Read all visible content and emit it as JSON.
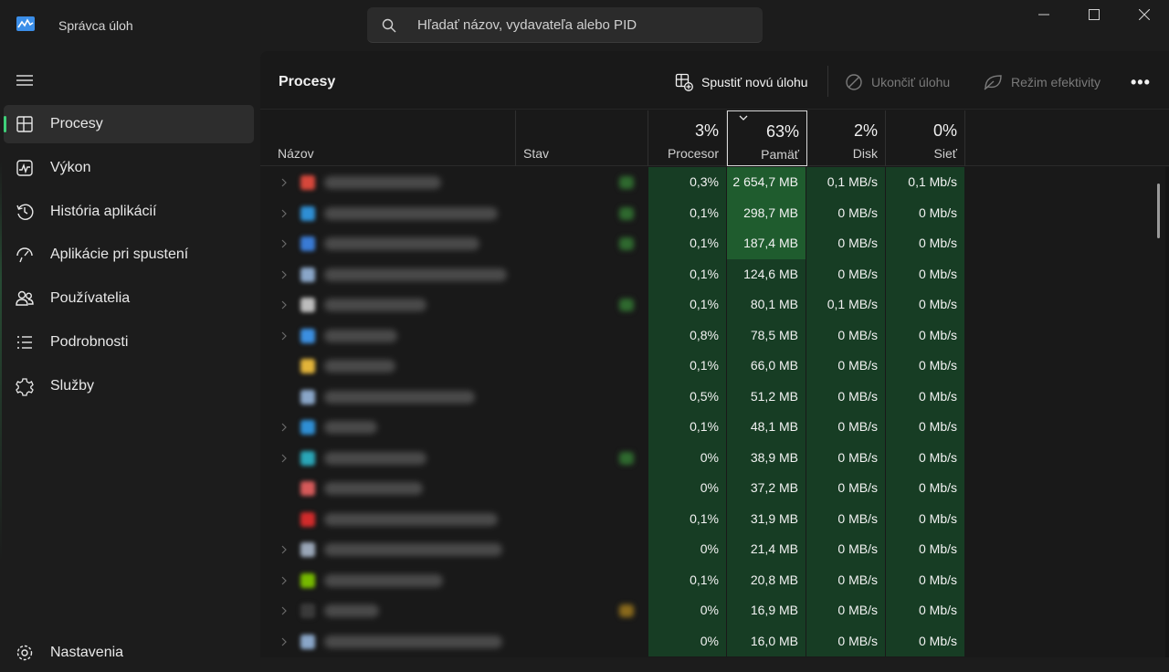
{
  "app": {
    "title": "Správca úloh"
  },
  "search": {
    "placeholder": "Hľadať názov, vydavateľa alebo PID"
  },
  "sidebar": {
    "items": [
      {
        "label": "Procesy",
        "icon": "processes-icon",
        "active": true
      },
      {
        "label": "Výkon",
        "icon": "performance-icon"
      },
      {
        "label": "História aplikácií",
        "icon": "history-icon"
      },
      {
        "label": "Aplikácie pri spustení",
        "icon": "startup-icon"
      },
      {
        "label": "Používatelia",
        "icon": "users-icon"
      },
      {
        "label": "Podrobnosti",
        "icon": "details-icon"
      },
      {
        "label": "Služby",
        "icon": "services-icon"
      }
    ],
    "settings_label": "Nastavenia"
  },
  "toolbar": {
    "title": "Procesy",
    "run_new_task": "Spustiť novú úlohu",
    "end_task": "Ukončiť úlohu",
    "efficiency_mode": "Režim efektivity",
    "more": "•••"
  },
  "columns": {
    "name": "Názov",
    "status": "Stav",
    "cpu": {
      "pct": "3%",
      "label": "Procesor"
    },
    "memory": {
      "pct": "63%",
      "label": "Pamäť",
      "sorted": true
    },
    "disk": {
      "pct": "2%",
      "label": "Disk"
    },
    "network": {
      "pct": "0%",
      "label": "Sieť"
    }
  },
  "rows": [
    {
      "cpu": "0,3%",
      "mem": "2 654,7 MB",
      "disk": "0,1 MB/s",
      "net": "0,1 Mb/s",
      "expandable": true,
      "status": true,
      "icon_color": "#d6473b",
      "name_len": 128
    },
    {
      "cpu": "0,1%",
      "mem": "298,7 MB",
      "disk": "0 MB/s",
      "net": "0 Mb/s",
      "expandable": true,
      "status": true,
      "icon_color": "#2f8fd4",
      "name_len": 190
    },
    {
      "cpu": "0,1%",
      "mem": "187,4 MB",
      "disk": "0 MB/s",
      "net": "0 Mb/s",
      "expandable": true,
      "status": true,
      "icon_color": "#3a7bd5",
      "name_len": 170
    },
    {
      "cpu": "0,1%",
      "mem": "124,6 MB",
      "disk": "0 MB/s",
      "net": "0 Mb/s",
      "expandable": true,
      "status": false,
      "icon_color": "#8aa6c8",
      "name_len": 200
    },
    {
      "cpu": "0,1%",
      "mem": "80,1 MB",
      "disk": "0,1 MB/s",
      "net": "0 Mb/s",
      "expandable": true,
      "status": true,
      "icon_color": "#bdbdbd",
      "name_len": 112
    },
    {
      "cpu": "0,8%",
      "mem": "78,5 MB",
      "disk": "0 MB/s",
      "net": "0 Mb/s",
      "expandable": true,
      "status": false,
      "icon_color": "#3c8fe0",
      "name_len": 80
    },
    {
      "cpu": "0,1%",
      "mem": "66,0 MB",
      "disk": "0 MB/s",
      "net": "0 Mb/s",
      "expandable": false,
      "status": false,
      "icon_color": "#e2b43a",
      "name_len": 78
    },
    {
      "cpu": "0,5%",
      "mem": "51,2 MB",
      "disk": "0 MB/s",
      "net": "0 Mb/s",
      "expandable": false,
      "status": false,
      "icon_color": "#8aa6c8",
      "name_len": 165
    },
    {
      "cpu": "0,1%",
      "mem": "48,1 MB",
      "disk": "0 MB/s",
      "net": "0 Mb/s",
      "expandable": true,
      "status": false,
      "icon_color": "#2f8fd4",
      "name_len": 58
    },
    {
      "cpu": "0%",
      "mem": "38,9 MB",
      "disk": "0 MB/s",
      "net": "0 Mb/s",
      "expandable": true,
      "status": true,
      "icon_color": "#2aa6b8",
      "name_len": 112
    },
    {
      "cpu": "0%",
      "mem": "37,2 MB",
      "disk": "0 MB/s",
      "net": "0 Mb/s",
      "expandable": false,
      "status": false,
      "icon_color": "#d65a5a",
      "name_len": 108
    },
    {
      "cpu": "0,1%",
      "mem": "31,9 MB",
      "disk": "0 MB/s",
      "net": "0 Mb/s",
      "expandable": false,
      "status": false,
      "icon_color": "#d12b2b",
      "name_len": 190
    },
    {
      "cpu": "0%",
      "mem": "21,4 MB",
      "disk": "0 MB/s",
      "net": "0 Mb/s",
      "expandable": true,
      "status": false,
      "icon_color": "#9aa7b8",
      "name_len": 195
    },
    {
      "cpu": "0,1%",
      "mem": "20,8 MB",
      "disk": "0 MB/s",
      "net": "0 Mb/s",
      "expandable": true,
      "status": false,
      "icon_color": "#76b900",
      "name_len": 130
    },
    {
      "cpu": "0%",
      "mem": "16,9 MB",
      "disk": "0 MB/s",
      "net": "0 Mb/s",
      "expandable": true,
      "status": "paused",
      "icon_color": "#3a3a3a",
      "name_len": 60
    },
    {
      "cpu": "0%",
      "mem": "16,0 MB",
      "disk": "0 MB/s",
      "net": "0 Mb/s",
      "expandable": true,
      "status": false,
      "icon_color": "#8aa6c8",
      "name_len": 195
    }
  ],
  "colors": {
    "accent": "#3fd07a",
    "heat_low": "#173d24",
    "heat_mid": "#1b4a28",
    "heat_high": "#1f5c2e"
  }
}
